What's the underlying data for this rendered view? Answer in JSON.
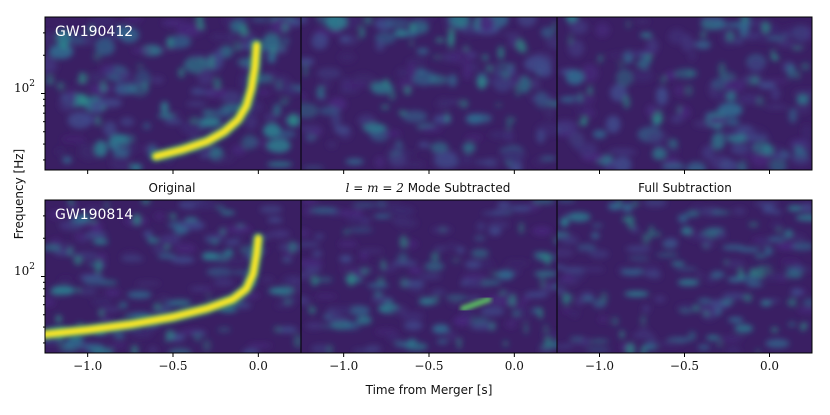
{
  "chart_data": {
    "type": "heatmap",
    "colormap": "viridis",
    "xlabel": "Time from Merger [s]",
    "ylabel": "Frequency [Hz]",
    "xlim": [
      -1.25,
      0.25
    ],
    "x_ticks": [
      -1.0,
      -0.5,
      0.0
    ],
    "x_tick_labels": [
      "−1.0",
      "−0.5",
      "0.0"
    ],
    "y_scale": "log",
    "y_ticks": [
      100
    ],
    "y_tick_label_base": "10",
    "y_tick_label_exp": "2",
    "columns": [
      {
        "title": "Original"
      },
      {
        "title_math": "l = m = 2",
        "title_text": " Mode Subtracted"
      },
      {
        "title": "Full Subtraction"
      }
    ],
    "rows": [
      {
        "event": "GW190412",
        "ylim": [
          25,
          400
        ],
        "chirp": [
          [
            -0.6,
            32
          ],
          [
            -0.45,
            36
          ],
          [
            -0.3,
            42
          ],
          [
            -0.2,
            50
          ],
          [
            -0.12,
            62
          ],
          [
            -0.07,
            80
          ],
          [
            -0.04,
            110
          ],
          [
            -0.02,
            160
          ],
          [
            -0.01,
            240
          ]
        ]
      },
      {
        "event": "GW190814",
        "ylim": [
          25,
          400
        ],
        "chirp": [
          [
            -1.25,
            35
          ],
          [
            -1.0,
            38
          ],
          [
            -0.75,
            42
          ],
          [
            -0.5,
            48
          ],
          [
            -0.3,
            56
          ],
          [
            -0.15,
            66
          ],
          [
            -0.07,
            80
          ],
          [
            -0.03,
            105
          ],
          [
            -0.01,
            150
          ],
          [
            0.0,
            200
          ]
        ]
      }
    ]
  }
}
